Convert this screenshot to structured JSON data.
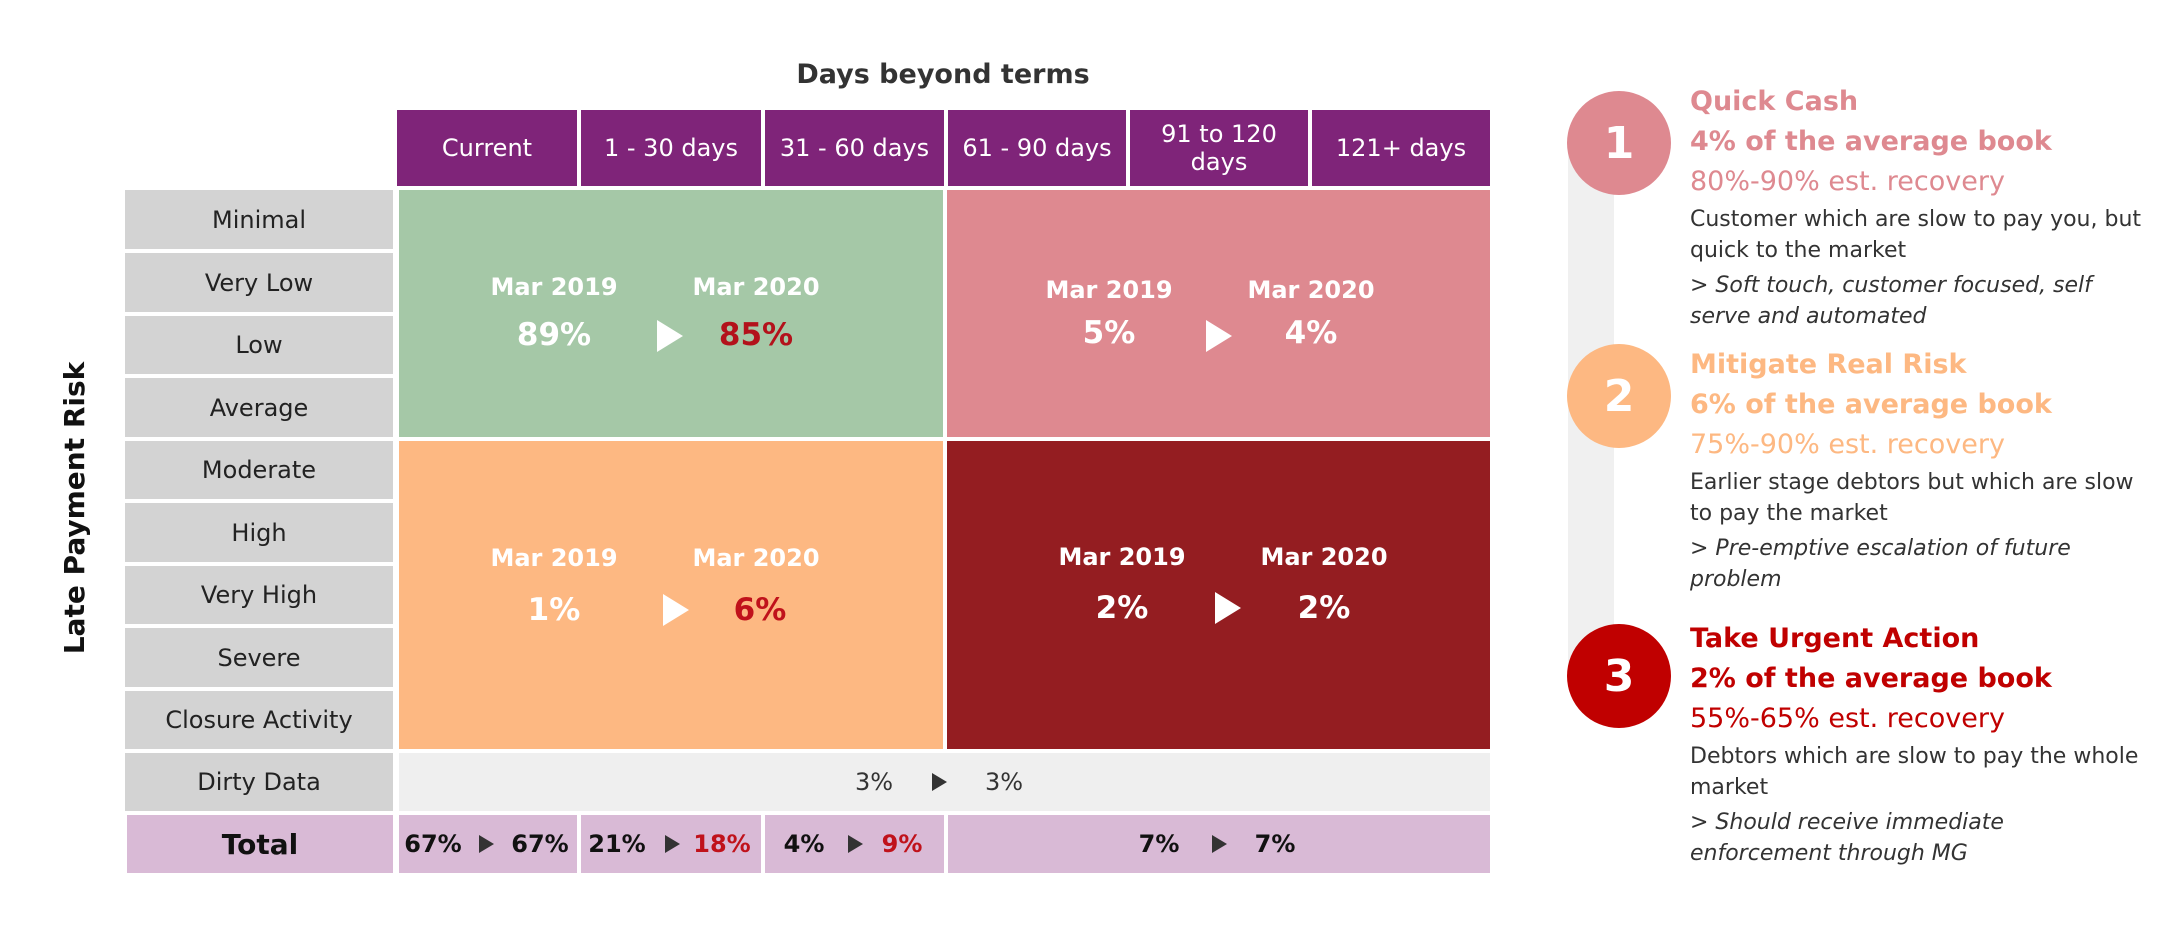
{
  "chart_data": {
    "type": "heatmap",
    "title": "Days beyond terms",
    "ylabel": "Late Payment Risk",
    "columns": [
      "Current",
      "1 - 30 days",
      "31 - 60 days",
      "61 - 90 days",
      "91 to 120 days",
      "121+ days"
    ],
    "rows": [
      "Minimal",
      "Very Low",
      "Low",
      "Average",
      "Moderate",
      "High",
      "Very High",
      "Severe",
      "Closure Activity",
      "Dirty Data"
    ],
    "total_label": "Total",
    "quadrants": [
      {
        "from_label": "Mar 2019",
        "to_label": "Mar 2020",
        "from_value": "89%",
        "to_value": "85%",
        "to_color": "#b3121b",
        "color": "#a5c8a7"
      },
      {
        "from_label": "Mar 2019",
        "to_label": "Mar 2020",
        "from_value": "5%",
        "to_value": "4%",
        "to_color": "#ffffff",
        "color": "#de8990"
      },
      {
        "from_label": "Mar 2019",
        "to_label": "Mar 2020",
        "from_value": "1%",
        "to_value": "6%",
        "to_color": "#c0121b",
        "color": "#fdb882"
      },
      {
        "from_label": "Mar 2019",
        "to_label": "Mar 2020",
        "from_value": "2%",
        "to_value": "2%",
        "to_color": "#ffffff",
        "color": "#941d21"
      }
    ],
    "dirty_data": {
      "from": "3%",
      "to": "3%"
    },
    "totals": [
      {
        "from": "67%",
        "to": "67%",
        "to_color": "#111111"
      },
      {
        "from": "21%",
        "to": "18%",
        "to_color": "#c0121b"
      },
      {
        "from": "4%",
        "to": "9%",
        "to_color": "#c0121b"
      },
      {
        "from": "7%",
        "to": "7%",
        "to_color": "#111111"
      }
    ]
  },
  "legend": [
    {
      "number": "1",
      "title": "Quick Cash",
      "subtitle": "4% of the average book",
      "recovery": "80%-90% est. recovery",
      "description": "Customer which are slow to pay you, but quick to the market",
      "action": "> Soft touch, customer focused, self serve and automated",
      "color": "#de8990"
    },
    {
      "number": "2",
      "title": "Mitigate Real Risk",
      "subtitle": "6% of the average book",
      "recovery": "75%-90% est. recovery",
      "description": "Earlier stage debtors but which are slow to pay the market",
      "action": "> Pre-emptive escalation of future problem",
      "color": "#fdb882"
    },
    {
      "number": "3",
      "title": "Take Urgent Action",
      "subtitle": "2% of the average book",
      "recovery": "55%-65% est. recovery",
      "description": "Debtors which are slow to pay the whole market",
      "action": "> Should receive immediate enforcement through MG",
      "color": "#c00000"
    }
  ]
}
